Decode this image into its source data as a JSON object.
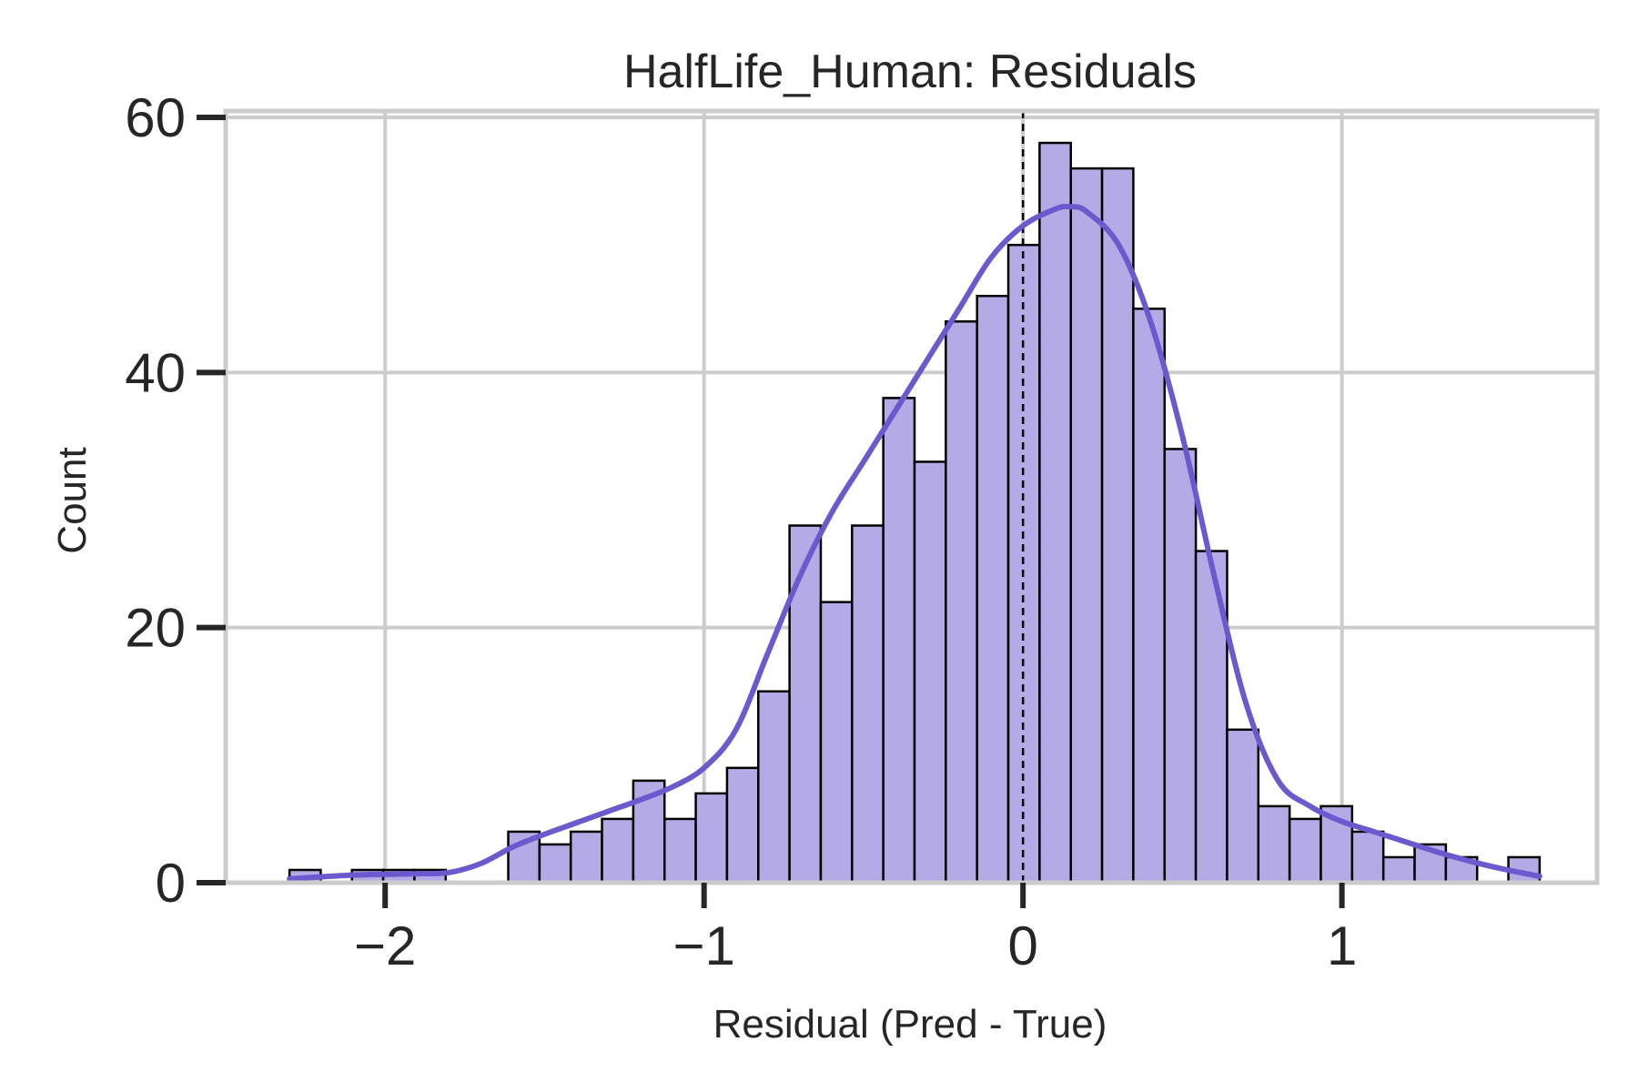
{
  "chart_data": {
    "type": "histogram",
    "title": "HalfLife_Human: Residuals",
    "xlabel": "Residual (Pred - True)",
    "ylabel": "Count",
    "xlim": [
      -2.5,
      1.8
    ],
    "ylim": [
      0,
      60.5
    ],
    "xticks": [
      -2,
      -1,
      0,
      1
    ],
    "xtick_labels": [
      "−2",
      "−1",
      "0",
      "1"
    ],
    "yticks": [
      0,
      20,
      40,
      60
    ],
    "ytick_labels": [
      "0",
      "20",
      "40",
      "60"
    ],
    "grid": true,
    "bin_start": -2.3,
    "bin_width": 0.098,
    "counts": [
      1,
      0,
      1,
      1,
      1,
      0,
      0,
      4,
      3,
      4,
      5,
      8,
      5,
      7,
      9,
      15,
      28,
      22,
      28,
      38,
      33,
      44,
      46,
      50,
      58,
      56,
      56,
      45,
      34,
      26,
      12,
      6,
      5,
      6,
      4,
      2,
      3,
      2,
      0,
      2
    ],
    "kde": {
      "x": [
        -2.3,
        -2.1,
        -1.9,
        -1.8,
        -1.7,
        -1.6,
        -1.5,
        -1.4,
        -1.3,
        -1.2,
        -1.1,
        -1.0,
        -0.9,
        -0.8,
        -0.7,
        -0.6,
        -0.5,
        -0.4,
        -0.3,
        -0.2,
        -0.1,
        0.0,
        0.1,
        0.15,
        0.2,
        0.3,
        0.4,
        0.5,
        0.6,
        0.7,
        0.8,
        0.9,
        1.0,
        1.1,
        1.2,
        1.3,
        1.4,
        1.5,
        1.62
      ],
      "y": [
        0.3,
        0.6,
        0.7,
        0.8,
        1.5,
        2.8,
        3.8,
        4.7,
        5.6,
        6.5,
        7.5,
        9.0,
        12.0,
        18.0,
        24.0,
        29.0,
        33.0,
        37.0,
        41.0,
        45.0,
        49.0,
        51.5,
        52.8,
        53.0,
        52.6,
        50.0,
        44.0,
        35.0,
        24.0,
        14.0,
        8.0,
        6.0,
        4.8,
        4.0,
        3.2,
        2.4,
        1.7,
        1.1,
        0.5
      ]
    },
    "reference_line_x": 0,
    "colors": {
      "bar_fill": "#b3aae6",
      "bar_edge": "#000000",
      "kde": "#6a5acd",
      "grid": "#cccccc",
      "text": "#262626"
    }
  }
}
